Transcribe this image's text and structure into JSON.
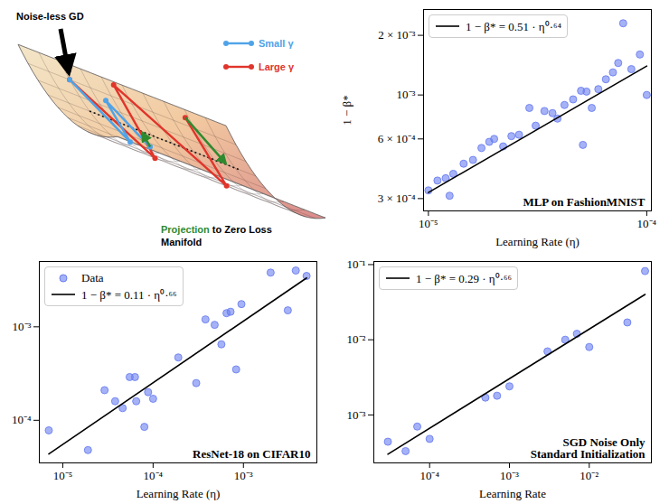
{
  "diagram": {
    "arrow_label": "Noise-less GD",
    "legend": [
      {
        "name": "Small γ",
        "color": "#4fa3e8"
      },
      {
        "name": "Large γ",
        "color": "#e0352b"
      }
    ],
    "projection_label": [
      "Projection",
      "to Zero Loss",
      "Manifold"
    ],
    "projection_color": "#2f8a2f"
  },
  "chart_data": [
    {
      "type": "scatter",
      "annotation": [
        "MLP on FashionMNIST"
      ],
      "x_label": "Learning Rate (η)",
      "y_label": "1 − β*",
      "log": true,
      "legend": "upper left",
      "xlim": [
        9.5e-06,
        0.000105
      ],
      "ylim": [
        0.00026,
        0.0027
      ],
      "xticks": [
        {
          "value": 1e-05,
          "label": "10⁻⁵"
        },
        {
          "value": 0.0001,
          "label": "10⁻⁴"
        }
      ],
      "yticks": [
        {
          "value": 0.0003,
          "label": "3 × 10⁻⁴"
        },
        {
          "value": 0.0006,
          "label": "6 × 10⁻⁴"
        },
        {
          "value": 0.001,
          "label": "10⁻³"
        },
        {
          "value": 0.002,
          "label": "2 × 10⁻³"
        }
      ],
      "series": [
        {
          "type": "scatter",
          "color": "#6b7ff0",
          "marker": "circle",
          "x": [
            1e-05,
            1.1e-05,
            1.2e-05,
            1.25e-05,
            1.3e-05,
            1.45e-05,
            1.6e-05,
            1.75e-05,
            1.9e-05,
            2e-05,
            2.2e-05,
            2.4e-05,
            2.6e-05,
            2.9e-05,
            3.1e-05,
            3.4e-05,
            3.7e-05,
            3.9e-05,
            4.2e-05,
            4.6e-05,
            5e-05,
            5.1e-05,
            5.3e-05,
            5.6e-05,
            6e-05,
            6.5e-05,
            7e-05,
            7.4e-05,
            7.8e-05,
            8.5e-05,
            9.3e-05,
            0.0001
          ],
          "values": [
            0.00033,
            0.00037,
            0.00038,
            0.00031,
            0.0004,
            0.00045,
            0.00047,
            0.00054,
            0.00058,
            0.0006,
            0.00055,
            0.00062,
            0.00063,
            0.00086,
            0.0007,
            0.00083,
            0.00081,
            0.00076,
            0.00089,
            0.00095,
            0.00105,
            0.00056,
            0.00104,
            0.00086,
            0.00107,
            0.0012,
            0.0013,
            0.00145,
            0.0023,
            0.00135,
            0.0016,
            0.001
          ]
        },
        {
          "name": "1 − β* = 0.51 · η⁰·⁶⁴",
          "type": "line",
          "color": "#000000",
          "line_style": "solid",
          "x": [
            1e-05,
            0.0001
          ],
          "values": [
            0.000322,
            0.0014
          ]
        }
      ]
    },
    {
      "type": "scatter",
      "annotation": [
        "ResNet-18 on CIFAR10"
      ],
      "x_label": "Learning Rate (η)",
      "log": true,
      "legend": "upper left",
      "xlim": [
        5.5e-06,
        0.0065
      ],
      "ylim": [
        3.5e-05,
        0.005
      ],
      "xticks": [
        {
          "value": 1e-05,
          "label": "10⁻⁵"
        },
        {
          "value": 0.0001,
          "label": "10⁻⁴"
        },
        {
          "value": 0.001,
          "label": "10⁻³"
        }
      ],
      "yticks": [
        {
          "value": 0.0001,
          "label": "10⁻⁴"
        },
        {
          "value": 0.001,
          "label": "10⁻³"
        }
      ],
      "series": [
        {
          "name": "Data",
          "type": "scatter",
          "color": "#6b7ff0",
          "marker": "circle",
          "x": [
            7e-06,
            1.9e-05,
            2.9e-05,
            3.8e-05,
            4.6e-05,
            5.5e-05,
            6.3e-05,
            6.5e-05,
            8e-05,
            8.8e-05,
            0.0001,
            0.00019,
            0.0003,
            0.00038,
            0.00048,
            0.00057,
            0.00065,
            0.00072,
            0.00083,
            0.00095,
            0.002,
            0.0031,
            0.0038,
            0.005
          ],
          "values": [
            7.8e-05,
            4.8e-05,
            0.00021,
            0.00016,
            0.000135,
            0.00029,
            0.00029,
            0.00016,
            8.5e-05,
            0.0002,
            0.00017,
            0.00047,
            0.00025,
            0.0012,
            0.00105,
            0.00065,
            0.0014,
            0.00145,
            0.00035,
            0.00175,
            0.0038,
            0.0015,
            0.004,
            0.0035
          ]
        },
        {
          "name": "1 − β* = 0.11 · η⁰·⁶⁶",
          "type": "line",
          "color": "#000000",
          "line_style": "solid",
          "x": [
            7e-06,
            0.005
          ],
          "values": [
            4.36e-05,
            0.00333
          ]
        }
      ]
    },
    {
      "type": "scatter",
      "annotation": [
        "SGD Noise Only",
        "Standard Initialization"
      ],
      "x_label": "Learning Rate",
      "log": true,
      "legend": "upper left",
      "xlim": [
        2e-05,
        0.06
      ],
      "ylim": [
        0.00023,
        0.11
      ],
      "xticks": [
        {
          "value": 0.0001,
          "label": "10⁻⁴"
        },
        {
          "value": 0.001,
          "label": "10⁻³"
        },
        {
          "value": 0.01,
          "label": "10⁻²"
        }
      ],
      "yticks": [
        {
          "value": 0.001,
          "label": "10⁻³"
        },
        {
          "value": 0.01,
          "label": "10⁻²"
        },
        {
          "value": 0.1,
          "label": "10⁻¹"
        }
      ],
      "series": [
        {
          "type": "scatter",
          "color": "#6b7ff0",
          "marker": "circle",
          "x": [
            3e-05,
            5e-05,
            7e-05,
            0.0001,
            0.0005,
            0.0007,
            0.001,
            0.003,
            0.005,
            0.007,
            0.01,
            0.03,
            0.05
          ],
          "values": [
            0.00044,
            0.00033,
            0.0007,
            0.00048,
            0.0017,
            0.0018,
            0.0024,
            0.007,
            0.01,
            0.012,
            0.008,
            0.017,
            0.082
          ]
        },
        {
          "name": "1 − β* = 0.29 · η⁰·⁶⁶",
          "type": "line",
          "color": "#000000",
          "line_style": "solid",
          "x": [
            3e-05,
            0.05
          ],
          "values": [
            0.0003,
            0.0401
          ]
        }
      ]
    }
  ]
}
